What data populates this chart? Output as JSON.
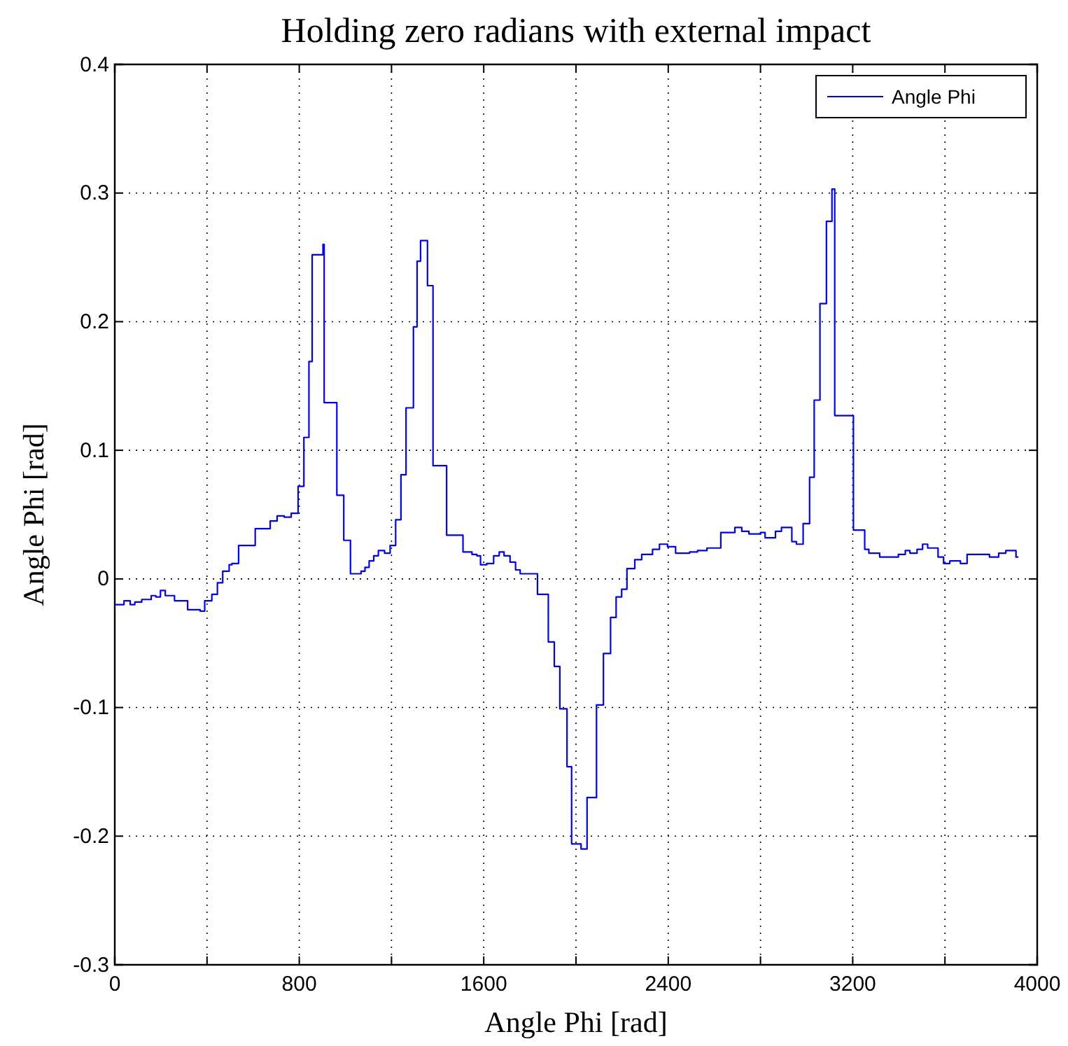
{
  "chart_data": {
    "type": "step",
    "title": "Holding zero radians with external impact",
    "xlabel": "Angle Phi [rad]",
    "ylabel": "Angle Phi [rad]",
    "xlim": [
      0,
      4000
    ],
    "ylim": [
      -0.3,
      0.4
    ],
    "xticks": [
      0,
      {
        "value": 400,
        "label": null
      },
      800,
      {
        "value": 1200,
        "label": null
      },
      1600,
      {
        "value": 2000,
        "label": null
      },
      2400,
      {
        "value": 2800,
        "label": null
      },
      3200,
      {
        "value": 3600,
        "label": null
      },
      4000
    ],
    "yticks": [
      -0.3,
      -0.2,
      -0.1,
      0,
      0.1,
      0.2,
      0.3,
      0.4
    ],
    "grid": true,
    "legend": "top right",
    "line_style": "solid",
    "series": [
      {
        "name": "Angle Phi",
        "color": "#0000ff",
        "x": [
          0,
          40,
          67,
          87,
          117,
          158,
          178,
          198,
          219,
          259,
          316,
          370,
          390,
          421,
          445,
          468,
          496,
          508,
          537,
          609,
          674,
          704,
          735,
          765,
          795,
          820,
          842,
          856,
          903,
          908,
          963,
          993,
          1022,
          1068,
          1085,
          1103,
          1123,
          1143,
          1170,
          1194,
          1218,
          1241,
          1263,
          1295,
          1311,
          1326,
          1356,
          1380,
          1439,
          1510,
          1549,
          1570,
          1586,
          1613,
          1643,
          1667,
          1688,
          1714,
          1738,
          1758,
          1833,
          1880,
          1906,
          1930,
          1961,
          1981,
          2022,
          2048,
          2089,
          2119,
          2150,
          2174,
          2198,
          2221,
          2255,
          2285,
          2332,
          2362,
          2397,
          2432,
          2493,
          2527,
          2568,
          2628,
          2689,
          2719,
          2750,
          2800,
          2820,
          2865,
          2891,
          2936,
          2956,
          2985,
          3013,
          3033,
          3058,
          3086,
          3110,
          3122,
          3203,
          3252,
          3270,
          3317,
          3398,
          3428,
          3448,
          3479,
          3503,
          3525,
          3570,
          3594,
          3621,
          3667,
          3696,
          3793,
          3833,
          3864,
          3908,
          3918
        ],
        "values": [
          -0.02,
          -0.017,
          -0.02,
          -0.018,
          -0.016,
          -0.013,
          -0.014,
          -0.009,
          -0.013,
          -0.017,
          -0.024,
          -0.025,
          -0.017,
          -0.012,
          -0.003,
          0.006,
          0.011,
          0.012,
          0.026,
          0.039,
          0.045,
          0.049,
          0.048,
          0.051,
          0.072,
          0.11,
          0.169,
          0.252,
          0.26,
          0.137,
          0.065,
          0.03,
          0.004,
          0.006,
          0.009,
          0.014,
          0.018,
          0.022,
          0.02,
          0.026,
          0.046,
          0.081,
          0.133,
          0.196,
          0.247,
          0.263,
          0.228,
          0.088,
          0.034,
          0.021,
          0.019,
          0.018,
          0.011,
          0.012,
          0.018,
          0.021,
          0.018,
          0.013,
          0.007,
          0.004,
          -0.012,
          -0.049,
          -0.068,
          -0.101,
          -0.146,
          -0.206,
          -0.21,
          -0.17,
          -0.098,
          -0.058,
          -0.03,
          -0.014,
          -0.008,
          0.008,
          0.015,
          0.019,
          0.023,
          0.027,
          0.025,
          0.02,
          0.021,
          0.022,
          0.024,
          0.036,
          0.04,
          0.037,
          0.035,
          0.036,
          0.032,
          0.037,
          0.04,
          0.029,
          0.027,
          0.043,
          0.079,
          0.139,
          0.214,
          0.278,
          0.303,
          0.127,
          0.038,
          0.023,
          0.02,
          0.017,
          0.019,
          0.022,
          0.02,
          0.023,
          0.027,
          0.024,
          0.017,
          0.012,
          0.014,
          0.012,
          0.019,
          0.017,
          0.02,
          0.022,
          0.017,
          0.017
        ]
      }
    ]
  }
}
